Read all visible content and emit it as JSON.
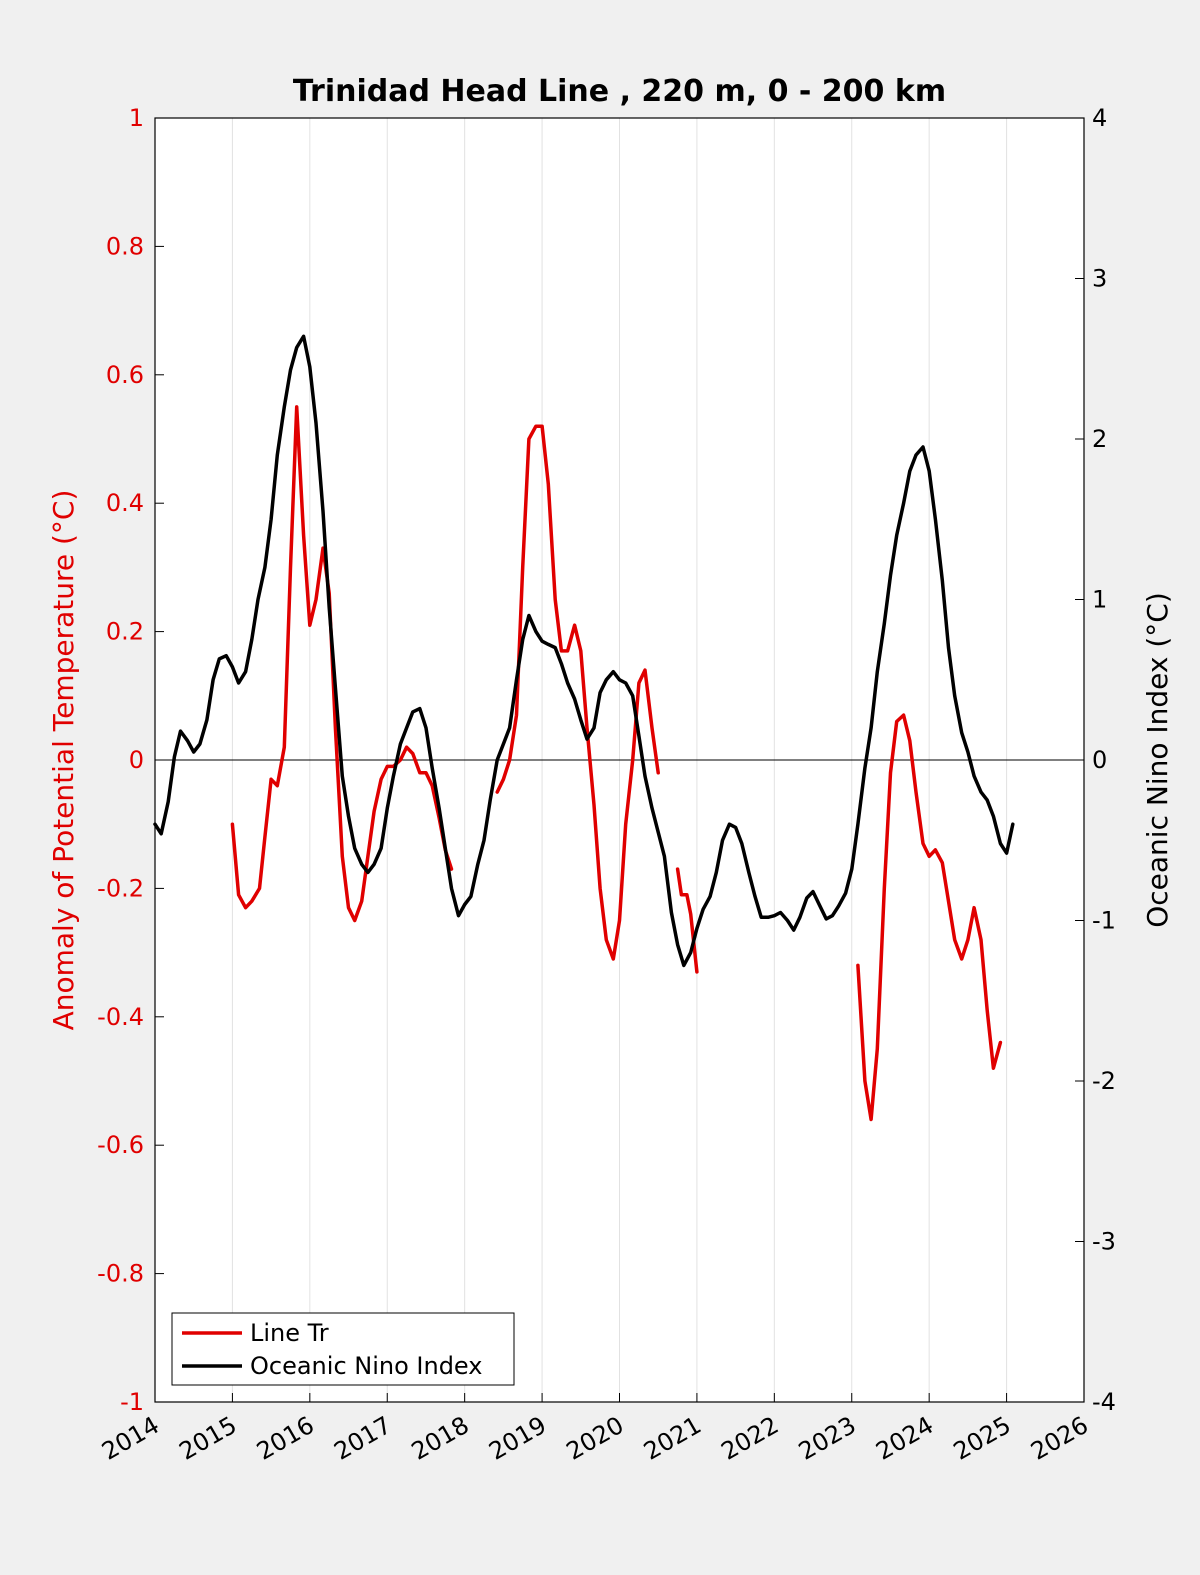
{
  "chart_data": {
    "type": "line",
    "title": "Trinidad Head Line , 220 m, 0 - 200 km",
    "ylabel_left": "Anomaly of Potential Temperature (°C)",
    "ylabel_right": "Oceanic Nino Index (°C)",
    "xlabel": "",
    "xlim": [
      2014,
      2026
    ],
    "ylim_left": [
      -1,
      1
    ],
    "ylim_right": [
      -4,
      4
    ],
    "x_ticks": [
      "2014",
      "2015",
      "2016",
      "2017",
      "2018",
      "2019",
      "2020",
      "2021",
      "2022",
      "2023",
      "2024",
      "2025",
      "2026"
    ],
    "y_ticks_left": [
      "-1",
      "-0.8",
      "-0.6",
      "-0.4",
      "-0.2",
      "0",
      "0.2",
      "0.4",
      "0.6",
      "0.8",
      "1"
    ],
    "y_ticks_right": [
      "-4",
      "-3",
      "-2",
      "-1",
      "0",
      "1",
      "2",
      "3",
      "4"
    ],
    "grid": "vertical",
    "zero_line": true,
    "legend_position": "bottom-left",
    "colors": {
      "line_tr": "#e00000",
      "oni": "#000000",
      "left_axis": "#e00000",
      "right_axis": "#000000"
    },
    "series": [
      {
        "name": "Line Tr",
        "axis": "left",
        "color": "#e00000",
        "segments": [
          [
            [
              2015.0,
              -0.1
            ],
            [
              2015.08,
              -0.21
            ],
            [
              2015.17,
              -0.23
            ],
            [
              2015.25,
              -0.22
            ],
            [
              2015.35,
              -0.2
            ],
            [
              2015.42,
              -0.12
            ],
            [
              2015.5,
              -0.03
            ],
            [
              2015.58,
              -0.04
            ],
            [
              2015.67,
              0.02
            ],
            [
              2015.75,
              0.3
            ],
            [
              2015.83,
              0.55
            ],
            [
              2015.92,
              0.35
            ],
            [
              2016.0,
              0.21
            ],
            [
              2016.08,
              0.25
            ],
            [
              2016.17,
              0.33
            ],
            [
              2016.25,
              0.26
            ],
            [
              2016.33,
              0.05
            ],
            [
              2016.42,
              -0.15
            ],
            [
              2016.5,
              -0.23
            ],
            [
              2016.58,
              -0.25
            ],
            [
              2016.67,
              -0.22
            ],
            [
              2016.75,
              -0.15
            ],
            [
              2016.83,
              -0.08
            ],
            [
              2016.92,
              -0.03
            ],
            [
              2017.0,
              -0.01
            ],
            [
              2017.08,
              -0.01
            ],
            [
              2017.17,
              0.0
            ],
            [
              2017.25,
              0.02
            ],
            [
              2017.33,
              0.01
            ],
            [
              2017.42,
              -0.02
            ],
            [
              2017.5,
              -0.02
            ],
            [
              2017.58,
              -0.04
            ],
            [
              2017.67,
              -0.09
            ],
            [
              2017.75,
              -0.14
            ],
            [
              2017.83,
              -0.17
            ]
          ],
          [
            [
              2018.42,
              -0.05
            ],
            [
              2018.5,
              -0.03
            ],
            [
              2018.58,
              0.0
            ],
            [
              2018.67,
              0.07
            ],
            [
              2018.75,
              0.3
            ],
            [
              2018.83,
              0.5
            ],
            [
              2018.92,
              0.52
            ],
            [
              2019.0,
              0.52
            ],
            [
              2019.08,
              0.43
            ],
            [
              2019.17,
              0.25
            ],
            [
              2019.25,
              0.17
            ],
            [
              2019.33,
              0.17
            ],
            [
              2019.42,
              0.21
            ],
            [
              2019.5,
              0.17
            ],
            [
              2019.58,
              0.05
            ],
            [
              2019.67,
              -0.07
            ],
            [
              2019.75,
              -0.2
            ],
            [
              2019.83,
              -0.28
            ],
            [
              2019.92,
              -0.31
            ],
            [
              2020.0,
              -0.25
            ],
            [
              2020.08,
              -0.1
            ],
            [
              2020.17,
              0.0
            ],
            [
              2020.25,
              0.12
            ],
            [
              2020.33,
              0.14
            ],
            [
              2020.42,
              0.05
            ],
            [
              2020.5,
              -0.02
            ]
          ],
          [
            [
              2020.75,
              -0.17
            ],
            [
              2020.8,
              -0.21
            ],
            [
              2020.87,
              -0.21
            ],
            [
              2020.92,
              -0.24
            ],
            [
              2021.0,
              -0.33
            ]
          ],
          [
            [
              2023.08,
              -0.32
            ],
            [
              2023.17,
              -0.5
            ],
            [
              2023.25,
              -0.56
            ],
            [
              2023.33,
              -0.45
            ],
            [
              2023.42,
              -0.2
            ],
            [
              2023.5,
              -0.02
            ],
            [
              2023.58,
              0.06
            ],
            [
              2023.67,
              0.07
            ],
            [
              2023.75,
              0.03
            ],
            [
              2023.83,
              -0.05
            ],
            [
              2023.92,
              -0.13
            ],
            [
              2024.0,
              -0.15
            ],
            [
              2024.08,
              -0.14
            ],
            [
              2024.17,
              -0.16
            ],
            [
              2024.25,
              -0.22
            ],
            [
              2024.33,
              -0.28
            ],
            [
              2024.42,
              -0.31
            ],
            [
              2024.5,
              -0.28
            ],
            [
              2024.58,
              -0.23
            ],
            [
              2024.67,
              -0.28
            ],
            [
              2024.75,
              -0.39
            ],
            [
              2024.83,
              -0.48
            ],
            [
              2024.92,
              -0.44
            ]
          ]
        ]
      },
      {
        "name": "Oceanic Nino Index",
        "axis": "right",
        "color": "#000000",
        "segments": [
          [
            [
              2014.0,
              -0.4
            ],
            [
              2014.08,
              -0.46
            ],
            [
              2014.17,
              -0.26
            ],
            [
              2014.25,
              0.02
            ],
            [
              2014.33,
              0.18
            ],
            [
              2014.42,
              0.12
            ],
            [
              2014.5,
              0.05
            ],
            [
              2014.58,
              0.1
            ],
            [
              2014.67,
              0.25
            ],
            [
              2014.75,
              0.5
            ],
            [
              2014.83,
              0.63
            ],
            [
              2014.92,
              0.65
            ],
            [
              2015.0,
              0.58
            ],
            [
              2015.08,
              0.48
            ],
            [
              2015.17,
              0.55
            ],
            [
              2015.25,
              0.75
            ],
            [
              2015.33,
              1.0
            ],
            [
              2015.42,
              1.2
            ],
            [
              2015.5,
              1.5
            ],
            [
              2015.58,
              1.9
            ],
            [
              2015.67,
              2.2
            ],
            [
              2015.75,
              2.43
            ],
            [
              2015.83,
              2.57
            ],
            [
              2015.92,
              2.64
            ],
            [
              2016.0,
              2.45
            ],
            [
              2016.08,
              2.1
            ],
            [
              2016.17,
              1.55
            ],
            [
              2016.25,
              0.95
            ],
            [
              2016.33,
              0.45
            ],
            [
              2016.42,
              -0.1
            ],
            [
              2016.5,
              -0.35
            ],
            [
              2016.58,
              -0.55
            ],
            [
              2016.67,
              -0.65
            ],
            [
              2016.75,
              -0.7
            ],
            [
              2016.83,
              -0.65
            ],
            [
              2016.92,
              -0.55
            ],
            [
              2017.0,
              -0.3
            ],
            [
              2017.08,
              -0.1
            ],
            [
              2017.17,
              0.1
            ],
            [
              2017.25,
              0.2
            ],
            [
              2017.33,
              0.3
            ],
            [
              2017.42,
              0.32
            ],
            [
              2017.5,
              0.2
            ],
            [
              2017.58,
              -0.05
            ],
            [
              2017.67,
              -0.3
            ],
            [
              2017.75,
              -0.55
            ],
            [
              2017.83,
              -0.8
            ],
            [
              2017.92,
              -0.97
            ],
            [
              2018.0,
              -0.9
            ],
            [
              2018.08,
              -0.85
            ],
            [
              2018.17,
              -0.65
            ],
            [
              2018.25,
              -0.5
            ],
            [
              2018.33,
              -0.25
            ],
            [
              2018.42,
              0.0
            ],
            [
              2018.5,
              0.1
            ],
            [
              2018.58,
              0.2
            ],
            [
              2018.67,
              0.5
            ],
            [
              2018.75,
              0.75
            ],
            [
              2018.83,
              0.9
            ],
            [
              2018.92,
              0.8
            ],
            [
              2019.0,
              0.74
            ],
            [
              2019.08,
              0.72
            ],
            [
              2019.17,
              0.7
            ],
            [
              2019.25,
              0.6
            ],
            [
              2019.33,
              0.48
            ],
            [
              2019.42,
              0.38
            ],
            [
              2019.5,
              0.25
            ],
            [
              2019.58,
              0.13
            ],
            [
              2019.67,
              0.2
            ],
            [
              2019.75,
              0.42
            ],
            [
              2019.83,
              0.5
            ],
            [
              2019.92,
              0.55
            ],
            [
              2020.0,
              0.5
            ],
            [
              2020.08,
              0.48
            ],
            [
              2020.17,
              0.4
            ],
            [
              2020.25,
              0.15
            ],
            [
              2020.33,
              -0.1
            ],
            [
              2020.42,
              -0.3
            ],
            [
              2020.5,
              -0.45
            ],
            [
              2020.58,
              -0.6
            ],
            [
              2020.67,
              -0.95
            ],
            [
              2020.75,
              -1.15
            ],
            [
              2020.83,
              -1.28
            ],
            [
              2020.92,
              -1.2
            ],
            [
              2021.0,
              -1.05
            ],
            [
              2021.08,
              -0.93
            ],
            [
              2021.17,
              -0.85
            ],
            [
              2021.25,
              -0.7
            ],
            [
              2021.33,
              -0.5
            ],
            [
              2021.42,
              -0.4
            ],
            [
              2021.5,
              -0.42
            ],
            [
              2021.58,
              -0.52
            ],
            [
              2021.67,
              -0.7
            ],
            [
              2021.75,
              -0.85
            ],
            [
              2021.83,
              -0.98
            ],
            [
              2021.92,
              -0.98
            ],
            [
              2022.0,
              -0.97
            ],
            [
              2022.08,
              -0.95
            ],
            [
              2022.17,
              -1.0
            ],
            [
              2022.25,
              -1.06
            ],
            [
              2022.33,
              -0.98
            ],
            [
              2022.42,
              -0.86
            ],
            [
              2022.5,
              -0.82
            ],
            [
              2022.58,
              -0.9
            ],
            [
              2022.67,
              -0.99
            ],
            [
              2022.75,
              -0.97
            ],
            [
              2022.83,
              -0.91
            ],
            [
              2022.92,
              -0.83
            ],
            [
              2023.0,
              -0.68
            ],
            [
              2023.08,
              -0.4
            ],
            [
              2023.17,
              -0.05
            ],
            [
              2023.25,
              0.2
            ],
            [
              2023.33,
              0.55
            ],
            [
              2023.42,
              0.85
            ],
            [
              2023.5,
              1.15
            ],
            [
              2023.58,
              1.4
            ],
            [
              2023.67,
              1.6
            ],
            [
              2023.75,
              1.8
            ],
            [
              2023.83,
              1.9
            ],
            [
              2023.92,
              1.95
            ],
            [
              2024.0,
              1.8
            ],
            [
              2024.08,
              1.5
            ],
            [
              2024.17,
              1.12
            ],
            [
              2024.25,
              0.7
            ],
            [
              2024.33,
              0.4
            ],
            [
              2024.42,
              0.17
            ],
            [
              2024.5,
              0.05
            ],
            [
              2024.58,
              -0.1
            ],
            [
              2024.67,
              -0.2
            ],
            [
              2024.75,
              -0.25
            ],
            [
              2024.83,
              -0.35
            ],
            [
              2024.92,
              -0.52
            ],
            [
              2025.0,
              -0.58
            ],
            [
              2025.08,
              -0.4
            ]
          ]
        ]
      }
    ]
  }
}
